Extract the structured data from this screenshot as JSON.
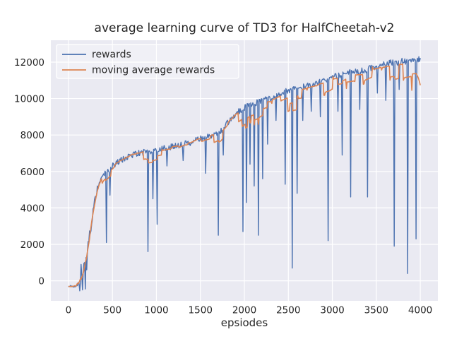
{
  "chart_data": {
    "type": "line",
    "title": "average learning curve of TD3 for HalfCheetah-v2",
    "xlabel": "epsiodes",
    "ylabel": "",
    "xlim": [
      -200,
      4200
    ],
    "ylim": [
      -1100,
      13200
    ],
    "xticks": [
      0,
      500,
      1000,
      1500,
      2000,
      2500,
      3000,
      3500,
      4000
    ],
    "yticks": [
      0,
      2000,
      4000,
      6000,
      8000,
      10000,
      12000
    ],
    "grid": true,
    "legend_position": "upper left",
    "series": [
      {
        "name": "rewards",
        "color": "#4c72b0"
      },
      {
        "name": "moving average rewards",
        "color": "#dd8452"
      }
    ],
    "base_curve": {
      "x_step": 50,
      "y": [
        -300,
        -320,
        -250,
        300,
        1200,
        2800,
        4600,
        5400,
        5800,
        6000,
        6300,
        6500,
        6650,
        6750,
        6850,
        6950,
        7000,
        7050,
        7100,
        7150,
        7200,
        7250,
        7300,
        7350,
        7400,
        7450,
        7500,
        7550,
        7600,
        7700,
        7800,
        7850,
        7900,
        8000,
        8100,
        8300,
        8600,
        8900,
        9150,
        9350,
        9500,
        9600,
        9700,
        9800,
        9900,
        9950,
        10000,
        10100,
        10200,
        10350,
        10450,
        10550,
        10600,
        10650,
        10700,
        10750,
        10800,
        10900,
        11000,
        11100,
        11200,
        11250,
        11300,
        11400,
        11450,
        11500,
        11500,
        11550,
        11600,
        11700,
        11750,
        11850,
        11900,
        11950,
        12000,
        12000,
        12050,
        12050,
        12100,
        12150,
        12200
      ]
    },
    "spikes": [
      [
        130,
        -550
      ],
      [
        140,
        900
      ],
      [
        160,
        -500
      ],
      [
        190,
        -450
      ],
      [
        210,
        600
      ],
      [
        430,
        2100
      ],
      [
        470,
        4700
      ],
      [
        900,
        1600
      ],
      [
        960,
        4500
      ],
      [
        1010,
        3100
      ],
      [
        1120,
        6300
      ],
      [
        1300,
        6600
      ],
      [
        1560,
        5900
      ],
      [
        1700,
        2500
      ],
      [
        1760,
        6900
      ],
      [
        1980,
        2700
      ],
      [
        2020,
        4300
      ],
      [
        2060,
        6400
      ],
      [
        2110,
        5200
      ],
      [
        2160,
        2500
      ],
      [
        2210,
        5600
      ],
      [
        2260,
        7500
      ],
      [
        2360,
        8800
      ],
      [
        2460,
        5300
      ],
      [
        2545,
        700
      ],
      [
        2600,
        4800
      ],
      [
        2660,
        8800
      ],
      [
        2760,
        9300
      ],
      [
        2860,
        9000
      ],
      [
        2950,
        2200
      ],
      [
        3060,
        9300
      ],
      [
        3110,
        6900
      ],
      [
        3210,
        4600
      ],
      [
        3310,
        9400
      ],
      [
        3400,
        4600
      ],
      [
        3510,
        10300
      ],
      [
        3610,
        9900
      ],
      [
        3700,
        1900
      ],
      [
        3760,
        10500
      ],
      [
        3855,
        400
      ],
      [
        3950,
        2300
      ]
    ],
    "moving_average_window": 13,
    "sample_step": 8,
    "noise": {
      "early": 60,
      "climb": 280,
      "main": 170
    }
  },
  "style": {
    "figure_bg": "#ffffff",
    "axes_bg": "#eaeaf2",
    "grid_color": "#ffffff",
    "text_color": "#262626",
    "legend_fill": "rgba(255,255,255,0.3)",
    "legend_edge": "#ffffff"
  }
}
